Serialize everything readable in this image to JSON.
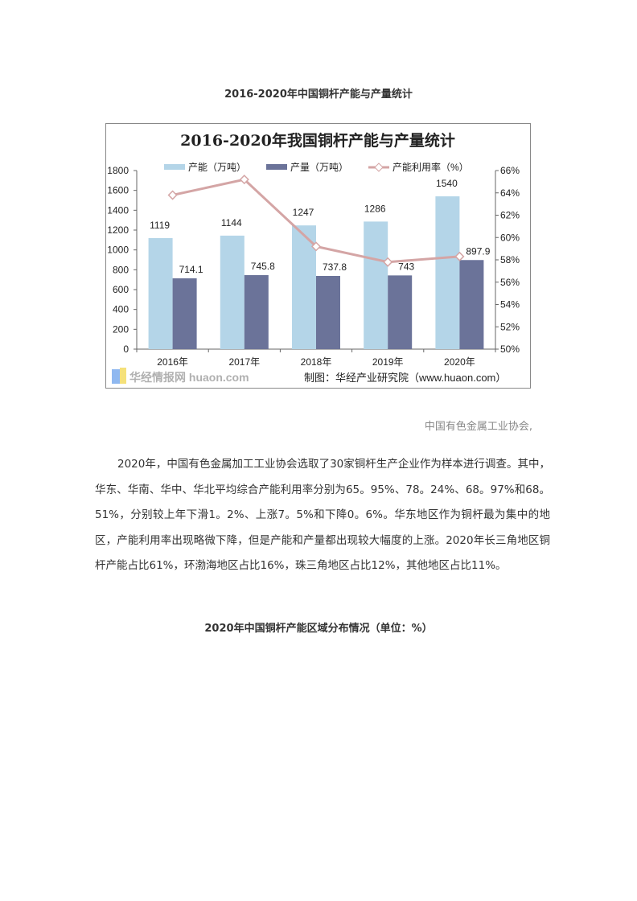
{
  "doc": {
    "heading1": "2016-2020年中国铜杆产能与产量统计",
    "source_note": "中国有色金属工业协会,",
    "paragraph": "2020年，中国有色金属加工工业协会选取了30家铜杆生产企业作为样本进行调查。其中，华东、华南、华中、华北平均综合产能利用率分别为65。95%、78。24%、68。97%和68。51%，分别较上年下滑1。2%、上涨7。5%和下降0。6%。华东地区作为铜杆最为集中的地区，产能利用率出现略微下降，但是产能和产量都出现较大幅度的上涨。2020年长三角地区铜杆产能占比61%，环渤海地区占比16%，珠三角地区占比12%，其他地区占比11%。",
    "heading2": "2020年中国铜杆产能区域分布情况（单位：%）"
  },
  "chart_data": {
    "type": "bar",
    "title": "2016-2020年我国铜杆产能与产量统计",
    "categories": [
      "2016年",
      "2017年",
      "2018年",
      "2019年",
      "2020年"
    ],
    "series": [
      {
        "name": "产能（万吨）",
        "type": "bar",
        "axis": "left",
        "color": "#b4d5e8",
        "values": [
          1119,
          1144,
          1247,
          1286,
          1540
        ],
        "labels": [
          "1119",
          "1144",
          "1247",
          "1286",
          "1540"
        ]
      },
      {
        "name": "产量（万吨）",
        "type": "bar",
        "axis": "left",
        "color": "#6b7399",
        "values": [
          714.1,
          745.8,
          737.8,
          743,
          897.9
        ],
        "labels": [
          "714.1",
          "745.8",
          "737.8",
          "743",
          "897.9"
        ]
      },
      {
        "name": "产能利用率（%）",
        "type": "line",
        "axis": "right",
        "color": "#d4a5a5",
        "values": [
          63.8,
          65.2,
          59.2,
          57.8,
          58.3
        ]
      }
    ],
    "ylim_left": [
      0,
      1800
    ],
    "yticks_left": [
      "0",
      "200",
      "400",
      "600",
      "800",
      "1000",
      "1200",
      "1400",
      "1600",
      "1800"
    ],
    "ylim_right": [
      50,
      66
    ],
    "yticks_right": [
      "50%",
      "52%",
      "54%",
      "56%",
      "58%",
      "60%",
      "62%",
      "64%",
      "66%"
    ],
    "legend": "top",
    "grid": false,
    "credit": "制图：华经产业研究院（www.huaon.com）",
    "watermark": "华经情报网 huaon.com"
  }
}
